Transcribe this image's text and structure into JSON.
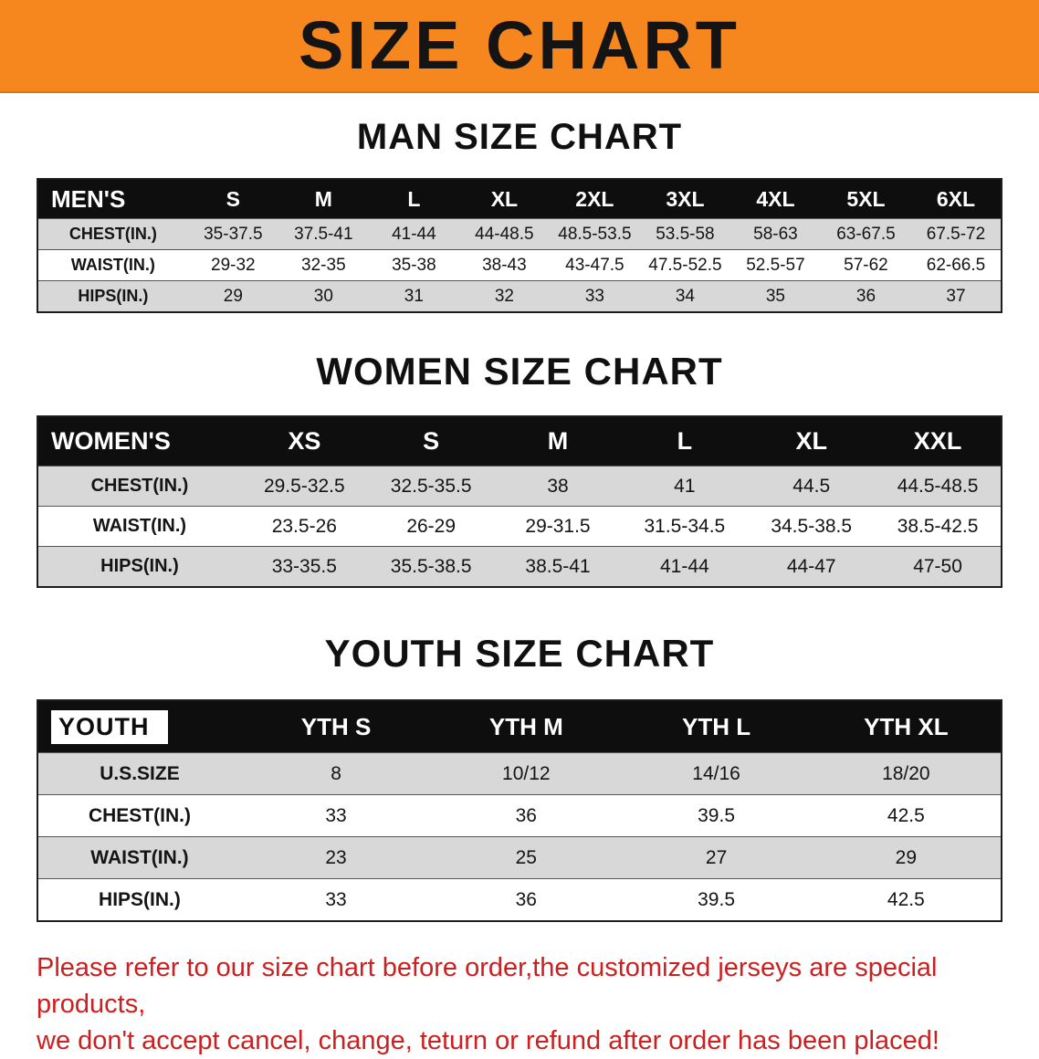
{
  "banner": {
    "title": "SIZE CHART"
  },
  "colors": {
    "banner_bg": "#F6871F",
    "table_header_bg": "#0E0E0E",
    "row_alt_bg": "#D8D8D8",
    "note_color": "#CC1F1F"
  },
  "men": {
    "heading": "MAN SIZE CHART",
    "table": {
      "header": [
        "MEN'S",
        "S",
        "M",
        "L",
        "XL",
        "2XL",
        "3XL",
        "4XL",
        "5XL",
        "6XL"
      ],
      "rows": [
        [
          "CHEST(IN.)",
          "35-37.5",
          "37.5-41",
          "41-44",
          "44-48.5",
          "48.5-53.5",
          "53.5-58",
          "58-63",
          "63-67.5",
          "67.5-72"
        ],
        [
          "WAIST(IN.)",
          "29-32",
          "32-35",
          "35-38",
          "38-43",
          "43-47.5",
          "47.5-52.5",
          "52.5-57",
          "57-62",
          "62-66.5"
        ],
        [
          "HIPS(IN.)",
          "29",
          "30",
          "31",
          "32",
          "33",
          "34",
          "35",
          "36",
          "37"
        ]
      ]
    }
  },
  "women": {
    "heading": "WOMEN SIZE CHART",
    "table": {
      "header": [
        "WOMEN'S",
        "XS",
        "S",
        "M",
        "L",
        "XL",
        "XXL"
      ],
      "rows": [
        [
          "CHEST(IN.)",
          "29.5-32.5",
          "32.5-35.5",
          "38",
          "41",
          "44.5",
          "44.5-48.5"
        ],
        [
          "WAIST(IN.)",
          "23.5-26",
          "26-29",
          "29-31.5",
          "31.5-34.5",
          "34.5-38.5",
          "38.5-42.5"
        ],
        [
          "HIPS(IN.)",
          "33-35.5",
          "35.5-38.5",
          "38.5-41",
          "41-44",
          "44-47",
          "47-50"
        ]
      ]
    }
  },
  "youth": {
    "heading": "YOUTH SIZE CHART",
    "table": {
      "header": [
        "YOUTH",
        "YTH S",
        "YTH M",
        "YTH L",
        "YTH XL"
      ],
      "rows": [
        [
          "U.S.SIZE",
          "8",
          "10/12",
          "14/16",
          "18/20"
        ],
        [
          "CHEST(IN.)",
          "33",
          "36",
          "39.5",
          "42.5"
        ],
        [
          "WAIST(IN.)",
          "23",
          "25",
          "27",
          "29"
        ],
        [
          "HIPS(IN.)",
          "33",
          "36",
          "39.5",
          "42.5"
        ]
      ]
    }
  },
  "note": {
    "line1": "Please refer to our size chart before order,the customized jerseys are special products,",
    "line2": "we don't accept cancel, change, teturn or refund after order has been placed!"
  }
}
